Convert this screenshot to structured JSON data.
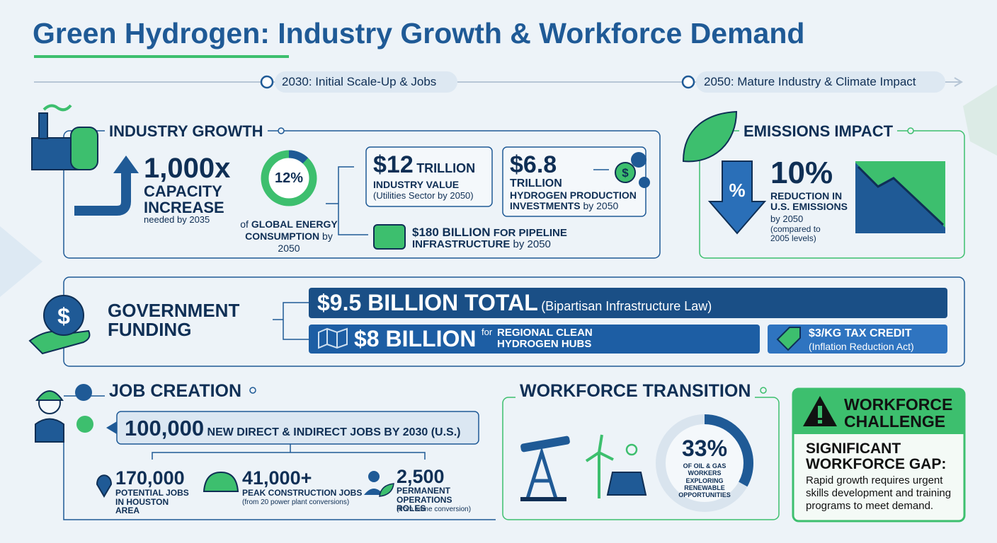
{
  "header": {
    "title": "Green Hydrogen: Industry Growth & Workforce Demand"
  },
  "timeline": {
    "milestones": [
      "2030: Initial Scale-Up & Jobs",
      "2050: Mature Industry & Climate Impact"
    ]
  },
  "industry_growth": {
    "heading": "INDUSTRY GROWTH",
    "capacity": {
      "figure": "1,000x",
      "label": "CAPACITY INCREASE",
      "note": "needed by 2035"
    },
    "energy_share": {
      "value": 12,
      "label": "12%",
      "caption_lead": "of",
      "caption": "GLOBAL ENERGY CONSUMPTION",
      "note": "by 2050"
    },
    "industry_value": {
      "figure": "$12",
      "unit": "TRILLION",
      "label": "INDUSTRY VALUE",
      "note": "(Utilities Sector by 2050)"
    },
    "production_investment": {
      "figure": "$6.8",
      "unit": "TRILLION",
      "label": "HYDROGEN PRODUCTION INVESTMENTS",
      "note": "by 2050",
      "icon": "$"
    },
    "pipeline": {
      "figure": "$180 BILLION",
      "label": "FOR PIPELINE INFRASTRUCTURE",
      "note": "by 2050"
    }
  },
  "emissions": {
    "heading": "EMISSIONS IMPACT",
    "icon": "%",
    "figure": "10%",
    "label": "REDUCTION IN U.S. EMISSIONS",
    "note": "by 2050",
    "baseline": "(compared to 2005 levels)"
  },
  "government": {
    "heading": "GOVERNMENT FUNDING",
    "icon": "$",
    "total": {
      "figure": "$9.5 BILLION TOTAL",
      "source": "(Bipartisan Infrastructure Law)"
    },
    "hubs": {
      "figure": "$8 BILLION",
      "lead": "for",
      "label": "REGIONAL CLEAN HYDROGEN HUBS"
    },
    "tax_credit": {
      "label": "$3/KG TAX CREDIT",
      "source": "(Inflation Reduction Act)"
    }
  },
  "jobs": {
    "heading": "JOB CREATION",
    "headline": {
      "figure": "100,000",
      "label": "NEW DIRECT & INDIRECT JOBS BY 2030 (U.S.)"
    },
    "items": [
      {
        "figure": "170,000",
        "label": "POTENTIAL JOBS IN HOUSTON AREA"
      },
      {
        "figure": "41,000+",
        "label": "PEAK CONSTRUCTION JOBS",
        "note": "(from 20 power plant conversions)"
      },
      {
        "figure": "2,500",
        "label": "PERMANENT OPERATIONS ROLES",
        "note": "(from same conversion)"
      }
    ]
  },
  "transition": {
    "heading": "WORKFORCE TRANSITION",
    "share": {
      "value": 33,
      "label": "33%",
      "caption": "OF OIL & GAS WORKERS EXPLORING RENEWABLE OPPORTUNITIES"
    }
  },
  "challenge": {
    "heading": "WORKFORCE CHALLENGE",
    "headline": "SIGNIFICANT WORKFORCE GAP:",
    "body": "Rapid growth requires urgent skills development and training programs to meet demand."
  }
}
